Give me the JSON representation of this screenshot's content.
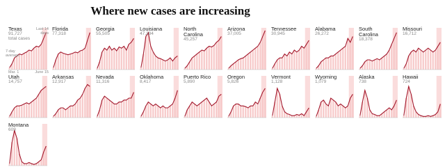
{
  "title": "Where new cases are increasing",
  "colors": {
    "bar": "#f7caca",
    "line": "#a3172b",
    "recent": "#f09a9a"
  },
  "chart_data": [
    {
      "type": "bar",
      "title": "Texas",
      "subtitle": "91,727",
      "annotations": [
        "total cases",
        "Last 14 days",
        "7-day average"
      ],
      "x_labels": [
        "Mar. 1",
        "June 15"
      ],
      "ylim": [
        0,
        100
      ],
      "values": [
        5,
        15,
        30,
        35,
        40,
        38,
        42,
        45,
        50,
        48,
        55,
        60,
        58,
        65,
        80,
        95
      ]
    },
    {
      "type": "bar",
      "title": "Florida",
      "subtitle": "77,318",
      "ylim": [
        0,
        100
      ],
      "values": [
        5,
        25,
        40,
        45,
        42,
        40,
        38,
        40,
        42,
        45,
        43,
        48,
        50,
        55,
        75,
        95
      ]
    },
    {
      "type": "bar",
      "title": "Georgia",
      "subtitle": "55,505",
      "ylim": [
        0,
        100
      ],
      "values": [
        3,
        20,
        45,
        55,
        50,
        60,
        50,
        55,
        48,
        58,
        55,
        60,
        50,
        65,
        70,
        80
      ]
    },
    {
      "type": "bar",
      "title": "Louisiana",
      "subtitle": "47,384",
      "ylim": [
        0,
        100
      ],
      "values": [
        5,
        40,
        85,
        95,
        60,
        45,
        35,
        30,
        28,
        25,
        22,
        25,
        30,
        22,
        30,
        35
      ]
    },
    {
      "type": "bar",
      "title": "North Carolina",
      "subtitle": "45,257",
      "ylim": [
        0,
        100
      ],
      "values": [
        3,
        10,
        20,
        30,
        35,
        40,
        45,
        50,
        48,
        55,
        60,
        58,
        62,
        70,
        75,
        85
      ]
    },
    {
      "type": "bar",
      "title": "Arizona",
      "subtitle": "37,005",
      "ylim": [
        0,
        100
      ],
      "values": [
        3,
        10,
        15,
        20,
        25,
        28,
        30,
        35,
        40,
        45,
        50,
        55,
        60,
        70,
        85,
        100
      ]
    },
    {
      "type": "bar",
      "title": "Tennessee",
      "subtitle": "30,945",
      "ylim": [
        0,
        100
      ],
      "values": [
        3,
        15,
        25,
        30,
        30,
        40,
        35,
        45,
        40,
        50,
        45,
        50,
        60,
        55,
        65,
        75
      ]
    },
    {
      "type": "bar",
      "title": "Alabama",
      "subtitle": "26,272",
      "ylim": [
        0,
        100
      ],
      "values": [
        3,
        10,
        20,
        25,
        30,
        30,
        35,
        35,
        40,
        45,
        50,
        55,
        60,
        80,
        70,
        85
      ]
    },
    {
      "type": "bar",
      "title": "South Carolina",
      "subtitle": "18,378",
      "ylim": [
        0,
        100
      ],
      "values": [
        3,
        10,
        20,
        25,
        25,
        22,
        25,
        28,
        25,
        30,
        35,
        40,
        50,
        65,
        80,
        95
      ]
    },
    {
      "type": "bar",
      "title": "Missouri",
      "subtitle": "16,712",
      "ylim": [
        0,
        100
      ],
      "values": [
        3,
        15,
        35,
        45,
        50,
        45,
        55,
        50,
        45,
        50,
        55,
        50,
        45,
        50,
        60,
        70
      ]
    },
    {
      "type": "bar",
      "title": "Utah",
      "subtitle": "14,757",
      "ylim": [
        0,
        100
      ],
      "values": [
        3,
        15,
        25,
        30,
        30,
        32,
        35,
        38,
        35,
        40,
        45,
        50,
        60,
        70,
        75,
        80
      ]
    },
    {
      "type": "bar",
      "title": "Arkansas",
      "subtitle": "12,917",
      "ylim": [
        0,
        100
      ],
      "values": [
        3,
        10,
        20,
        25,
        25,
        20,
        25,
        30,
        30,
        35,
        45,
        50,
        60,
        75,
        85,
        80
      ]
    },
    {
      "type": "bar",
      "title": "Nevada",
      "subtitle": "11,316",
      "ylim": [
        0,
        100
      ],
      "values": [
        3,
        20,
        45,
        55,
        50,
        45,
        40,
        35,
        35,
        40,
        40,
        45,
        45,
        50,
        50,
        65
      ]
    },
    {
      "type": "bar",
      "title": "Oklahoma",
      "subtitle": "8,417",
      "ylim": [
        0,
        100
      ],
      "values": [
        3,
        15,
        30,
        40,
        35,
        30,
        35,
        30,
        25,
        30,
        25,
        25,
        30,
        35,
        50,
        70
      ]
    },
    {
      "type": "bar",
      "title": "Puerto Rico",
      "subtitle": "5,890",
      "ylim": [
        0,
        100
      ],
      "values": [
        3,
        20,
        30,
        40,
        35,
        30,
        35,
        40,
        45,
        50,
        40,
        30,
        35,
        40,
        55,
        60
      ]
    },
    {
      "type": "bar",
      "title": "Oregon",
      "subtitle": "5,826",
      "ylim": [
        0,
        100
      ],
      "values": [
        3,
        15,
        30,
        35,
        35,
        30,
        30,
        28,
        25,
        30,
        30,
        40,
        35,
        50,
        65,
        75
      ]
    },
    {
      "type": "bar",
      "title": "Vermont",
      "subtitle": "1,128",
      "ylim": [
        0,
        100
      ],
      "values": [
        5,
        40,
        75,
        60,
        30,
        15,
        10,
        8,
        5,
        5,
        8,
        6,
        10,
        5,
        15,
        25
      ]
    },
    {
      "type": "bar",
      "title": "Wyoming",
      "subtitle": "1,079",
      "ylim": [
        0,
        100
      ],
      "values": [
        3,
        20,
        40,
        45,
        35,
        30,
        50,
        45,
        40,
        30,
        35,
        30,
        25,
        30,
        50,
        60
      ]
    },
    {
      "type": "bar",
      "title": "Alaska",
      "subtitle": "738",
      "ylim": [
        0,
        100
      ],
      "values": [
        5,
        40,
        70,
        50,
        20,
        10,
        8,
        5,
        5,
        10,
        15,
        20,
        25,
        20,
        30,
        45
      ]
    },
    {
      "type": "bar",
      "title": "Hawaii",
      "subtitle": "724",
      "ylim": [
        0,
        100
      ],
      "values": [
        5,
        50,
        80,
        60,
        30,
        15,
        8,
        5,
        3,
        3,
        5,
        3,
        5,
        8,
        15,
        35
      ]
    },
    {
      "type": "bar",
      "title": "Montana",
      "subtitle": "609",
      "ylim": [
        0,
        100
      ],
      "values": [
        5,
        60,
        90,
        70,
        30,
        10,
        5,
        5,
        8,
        5,
        3,
        5,
        10,
        15,
        35,
        50
      ]
    }
  ]
}
